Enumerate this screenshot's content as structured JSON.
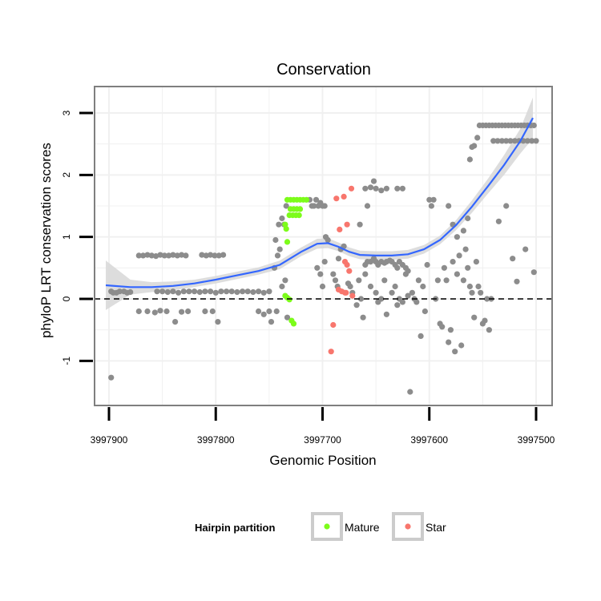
{
  "chart_data": {
    "type": "scatter",
    "title": "Conservation",
    "xlabel": "Genomic Position",
    "ylabel": "phyloP LRT conservation scores",
    "xlim": [
      3997900,
      3997500
    ],
    "x_reversed": true,
    "ylim": [
      -1.7,
      3.45
    ],
    "x_ticks": [
      3997900,
      3997800,
      3997700,
      3997600,
      3997500
    ],
    "x_tick_labels": [
      "3997900",
      "3997800",
      "3997700",
      "3997600",
      "3997500"
    ],
    "y_ticks": [
      -1,
      0,
      1,
      2,
      3
    ],
    "y_tick_labels": [
      "-1",
      "0",
      "1",
      "2",
      "3"
    ],
    "grid": true,
    "reference_line": {
      "y": 0,
      "style": "dashed"
    },
    "colors": {
      "background": "#ffffff",
      "grid": "#f0f0f0",
      "border": "#7f7f7f",
      "default_points": "#8c8c8c",
      "Mature": "#7cfc1a",
      "Star": "#f8766d",
      "smooth_line": "#3366ff",
      "smooth_band": "#d9d9d9"
    },
    "legend": {
      "title": "Hairpin partition",
      "position": "bottom",
      "entries": [
        {
          "name": "Mature",
          "color": "#7cfc1a"
        },
        {
          "name": "Star",
          "color": "#f8766d"
        }
      ]
    },
    "series": [
      {
        "name": "Other",
        "color": "#8c8c8c",
        "points": [
          [
            3997898,
            -1.27
          ],
          [
            3997898,
            0.12
          ],
          [
            3997896,
            0.1
          ],
          [
            3997893,
            0.1
          ],
          [
            3997890,
            0.12
          ],
          [
            3997886,
            0.12
          ],
          [
            3997883,
            0.1
          ],
          [
            3997880,
            0.11
          ],
          [
            3997872,
            0.7
          ],
          [
            3997868,
            0.7
          ],
          [
            3997864,
            0.71
          ],
          [
            3997860,
            0.7
          ],
          [
            3997856,
            0.69
          ],
          [
            3997852,
            0.71
          ],
          [
            3997848,
            0.7
          ],
          [
            3997844,
            0.7
          ],
          [
            3997840,
            0.71
          ],
          [
            3997836,
            0.7
          ],
          [
            3997832,
            0.71
          ],
          [
            3997828,
            0.7
          ],
          [
            3997813,
            0.71
          ],
          [
            3997809,
            0.7
          ],
          [
            3997805,
            0.71
          ],
          [
            3997801,
            0.7
          ],
          [
            3997797,
            0.7
          ],
          [
            3997793,
            0.71
          ],
          [
            3997872,
            -0.2
          ],
          [
            3997864,
            -0.2
          ],
          [
            3997857,
            -0.22
          ],
          [
            3997852,
            -0.19
          ],
          [
            3997846,
            -0.2
          ],
          [
            3997838,
            -0.37
          ],
          [
            3997832,
            -0.21
          ],
          [
            3997826,
            -0.2
          ],
          [
            3997810,
            -0.2
          ],
          [
            3997803,
            -0.2
          ],
          [
            3997798,
            -0.37
          ],
          [
            3997855,
            0.12
          ],
          [
            3997850,
            0.12
          ],
          [
            3997845,
            0.11
          ],
          [
            3997840,
            0.12
          ],
          [
            3997835,
            0.1
          ],
          [
            3997830,
            0.12
          ],
          [
            3997825,
            0.12
          ],
          [
            3997820,
            0.12
          ],
          [
            3997815,
            0.11
          ],
          [
            3997810,
            0.12
          ],
          [
            3997805,
            0.12
          ],
          [
            3997800,
            0.1
          ],
          [
            3997795,
            0.12
          ],
          [
            3997790,
            0.12
          ],
          [
            3997785,
            0.12
          ],
          [
            3997780,
            0.11
          ],
          [
            3997775,
            0.12
          ],
          [
            3997770,
            0.12
          ],
          [
            3997765,
            0.11
          ],
          [
            3997760,
            0.12
          ],
          [
            3997755,
            0.1
          ],
          [
            3997750,
            0.12
          ],
          [
            3997760,
            -0.2
          ],
          [
            3997755,
            -0.25
          ],
          [
            3997750,
            -0.2
          ],
          [
            3997748,
            -0.37
          ],
          [
            3997743,
            -0.2
          ],
          [
            3997745,
            0.5
          ],
          [
            3997742,
            0.7
          ],
          [
            3997740,
            0.8
          ],
          [
            3997738,
            0.2
          ],
          [
            3997735,
            0.3
          ],
          [
            3997733,
            -0.3
          ],
          [
            3997744,
            0.95
          ],
          [
            3997741,
            1.2
          ],
          [
            3997738,
            1.3
          ],
          [
            3997736,
            1.2
          ],
          [
            3997734,
            1.5
          ],
          [
            3997712,
            1.6
          ],
          [
            3997710,
            1.5
          ],
          [
            3997708,
            1.5
          ],
          [
            3997706,
            1.6
          ],
          [
            3997704,
            1.5
          ],
          [
            3997702,
            1.55
          ],
          [
            3997700,
            1.5
          ],
          [
            3997698,
            1.5
          ],
          [
            3997697,
            1.0
          ],
          [
            3997695,
            0.95
          ],
          [
            3997700,
            0.2
          ],
          [
            3997705,
            0.5
          ],
          [
            3997702,
            0.4
          ],
          [
            3997698,
            0.6
          ],
          [
            3997690,
            0.4
          ],
          [
            3997688,
            0.3
          ],
          [
            3997686,
            0.2
          ],
          [
            3997685,
            0.65
          ],
          [
            3997683,
            0.8
          ],
          [
            3997680,
            0.85
          ],
          [
            3997676,
            0.25
          ],
          [
            3997674,
            0.2
          ],
          [
            3997672,
            0.1
          ],
          [
            3997668,
            -0.1
          ],
          [
            3997666,
            0.3
          ],
          [
            3997664,
            0.0
          ],
          [
            3997662,
            -0.3
          ],
          [
            3997660,
            0.55
          ],
          [
            3997658,
            0.6
          ],
          [
            3997655,
            0.6
          ],
          [
            3997652,
            0.65
          ],
          [
            3997650,
            0.6
          ],
          [
            3997648,
            0.55
          ],
          [
            3997645,
            0.6
          ],
          [
            3997642,
            0.58
          ],
          [
            3997640,
            0.6
          ],
          [
            3997637,
            0.62
          ],
          [
            3997635,
            0.6
          ],
          [
            3997632,
            0.55
          ],
          [
            3997630,
            0.5
          ],
          [
            3997628,
            0.6
          ],
          [
            3997625,
            0.55
          ],
          [
            3997622,
            0.5
          ],
          [
            3997620,
            0.45
          ],
          [
            3997660,
            1.78
          ],
          [
            3997655,
            1.8
          ],
          [
            3997652,
            1.9
          ],
          [
            3997650,
            1.78
          ],
          [
            3997645,
            1.75
          ],
          [
            3997640,
            1.78
          ],
          [
            3997630,
            1.78
          ],
          [
            3997625,
            1.78
          ],
          [
            3997658,
            1.5
          ],
          [
            3997665,
            1.2
          ],
          [
            3997660,
            0.4
          ],
          [
            3997655,
            0.2
          ],
          [
            3997650,
            0.1
          ],
          [
            3997648,
            -0.05
          ],
          [
            3997645,
            0.0
          ],
          [
            3997642,
            0.3
          ],
          [
            3997640,
            -0.25
          ],
          [
            3997635,
            0.1
          ],
          [
            3997632,
            0.2
          ],
          [
            3997630,
            -0.1
          ],
          [
            3997628,
            0.0
          ],
          [
            3997625,
            -0.05
          ],
          [
            3997622,
            0.4
          ],
          [
            3997620,
            0.05
          ],
          [
            3997618,
            -1.5
          ],
          [
            3997616,
            0.1
          ],
          [
            3997614,
            0.0
          ],
          [
            3997612,
            -0.05
          ],
          [
            3997610,
            0.3
          ],
          [
            3997608,
            -0.6
          ],
          [
            3997606,
            0.2
          ],
          [
            3997604,
            -0.2
          ],
          [
            3997602,
            0.55
          ],
          [
            3997600,
            1.6
          ],
          [
            3997598,
            1.5
          ],
          [
            3997596,
            1.6
          ],
          [
            3997594,
            0.0
          ],
          [
            3997592,
            0.3
          ],
          [
            3997590,
            -0.4
          ],
          [
            3997588,
            -0.45
          ],
          [
            3997586,
            0.5
          ],
          [
            3997584,
            0.3
          ],
          [
            3997582,
            -0.7
          ],
          [
            3997580,
            -0.5
          ],
          [
            3997578,
            0.6
          ],
          [
            3997576,
            -0.85
          ],
          [
            3997574,
            0.4
          ],
          [
            3997572,
            0.7
          ],
          [
            3997570,
            -0.75
          ],
          [
            3997568,
            0.3
          ],
          [
            3997566,
            0.8
          ],
          [
            3997564,
            0.5
          ],
          [
            3997562,
            0.2
          ],
          [
            3997560,
            0.1
          ],
          [
            3997558,
            -0.3
          ],
          [
            3997556,
            0.6
          ],
          [
            3997554,
            0.2
          ],
          [
            3997552,
            0.1
          ],
          [
            3997550,
            -0.4
          ],
          [
            3997548,
            -0.35
          ],
          [
            3997546,
            0.0
          ],
          [
            3997544,
            -0.5
          ],
          [
            3997542,
            0.0
          ],
          [
            3997562,
            2.25
          ],
          [
            3997560,
            2.45
          ],
          [
            3997558,
            2.47
          ],
          [
            3997555,
            2.6
          ],
          [
            3997582,
            1.5
          ],
          [
            3997578,
            1.2
          ],
          [
            3997574,
            1.0
          ],
          [
            3997568,
            1.1
          ],
          [
            3997564,
            1.3
          ],
          [
            3997553,
            2.8
          ],
          [
            3997550,
            2.8
          ],
          [
            3997547,
            2.8
          ],
          [
            3997544,
            2.8
          ],
          [
            3997541,
            2.8
          ],
          [
            3997538,
            2.8
          ],
          [
            3997535,
            2.8
          ],
          [
            3997532,
            2.8
          ],
          [
            3997529,
            2.8
          ],
          [
            3997526,
            2.8
          ],
          [
            3997523,
            2.8
          ],
          [
            3997520,
            2.8
          ],
          [
            3997517,
            2.8
          ],
          [
            3997514,
            2.8
          ],
          [
            3997511,
            2.8
          ],
          [
            3997508,
            2.8
          ],
          [
            3997505,
            2.8
          ],
          [
            3997502,
            2.8
          ],
          [
            3997540,
            2.55
          ],
          [
            3997536,
            2.55
          ],
          [
            3997532,
            2.55
          ],
          [
            3997528,
            2.55
          ],
          [
            3997524,
            2.55
          ],
          [
            3997520,
            2.55
          ],
          [
            3997516,
            2.55
          ],
          [
            3997512,
            2.55
          ],
          [
            3997508,
            2.55
          ],
          [
            3997504,
            2.55
          ],
          [
            3997500,
            2.55
          ],
          [
            3997535,
            1.25
          ],
          [
            3997528,
            1.5
          ],
          [
            3997522,
            0.65
          ],
          [
            3997518,
            0.28
          ],
          [
            3997510,
            0.8
          ],
          [
            3997502,
            0.43
          ]
        ]
      },
      {
        "name": "Mature",
        "color": "#7cfc1a",
        "points": [
          [
            3997733,
            1.6
          ],
          [
            3997730,
            1.6
          ],
          [
            3997727,
            1.6
          ],
          [
            3997724,
            1.6
          ],
          [
            3997721,
            1.6
          ],
          [
            3997718,
            1.6
          ],
          [
            3997715,
            1.6
          ],
          [
            3997730,
            1.45
          ],
          [
            3997727,
            1.45
          ],
          [
            3997724,
            1.45
          ],
          [
            3997721,
            1.45
          ],
          [
            3997731,
            1.35
          ],
          [
            3997728,
            1.35
          ],
          [
            3997725,
            1.35
          ],
          [
            3997722,
            1.35
          ],
          [
            3997735,
            1.2
          ],
          [
            3997734,
            1.13
          ],
          [
            3997733,
            0.92
          ],
          [
            3997735,
            0.05
          ],
          [
            3997733,
            0.02
          ],
          [
            3997731,
            -0.01
          ],
          [
            3997729,
            -0.35
          ],
          [
            3997727,
            -0.4
          ]
        ]
      },
      {
        "name": "Star",
        "color": "#f8766d",
        "points": [
          [
            3997673,
            1.78
          ],
          [
            3997680,
            1.65
          ],
          [
            3997687,
            1.62
          ],
          [
            3997677,
            1.2
          ],
          [
            3997684,
            1.12
          ],
          [
            3997679,
            0.6
          ],
          [
            3997677,
            0.55
          ],
          [
            3997675,
            0.45
          ],
          [
            3997685,
            0.15
          ],
          [
            3997682,
            0.12
          ],
          [
            3997679,
            0.1
          ],
          [
            3997678,
            0.1
          ],
          [
            3997672,
            0.05
          ],
          [
            3997690,
            -0.42
          ],
          [
            3997692,
            -0.85
          ]
        ]
      }
    ],
    "smooth": {
      "x": [
        3997903,
        3997880,
        3997860,
        3997840,
        3997820,
        3997800,
        3997780,
        3997760,
        3997740,
        3997720,
        3997705,
        3997695,
        3997685,
        3997675,
        3997665,
        3997650,
        3997635,
        3997620,
        3997605,
        3997590,
        3997575,
        3997560,
        3997545,
        3997530,
        3997515,
        3997503
      ],
      "y": [
        0.22,
        0.19,
        0.19,
        0.21,
        0.25,
        0.31,
        0.38,
        0.45,
        0.55,
        0.76,
        0.89,
        0.9,
        0.84,
        0.76,
        0.71,
        0.7,
        0.7,
        0.72,
        0.8,
        0.95,
        1.19,
        1.49,
        1.82,
        2.16,
        2.54,
        2.92
      ],
      "band": [
        0.4,
        0.12,
        0.08,
        0.07,
        0.06,
        0.06,
        0.06,
        0.06,
        0.07,
        0.07,
        0.08,
        0.08,
        0.07,
        0.07,
        0.07,
        0.07,
        0.07,
        0.07,
        0.07,
        0.07,
        0.08,
        0.1,
        0.12,
        0.16,
        0.2,
        0.33
      ]
    }
  }
}
